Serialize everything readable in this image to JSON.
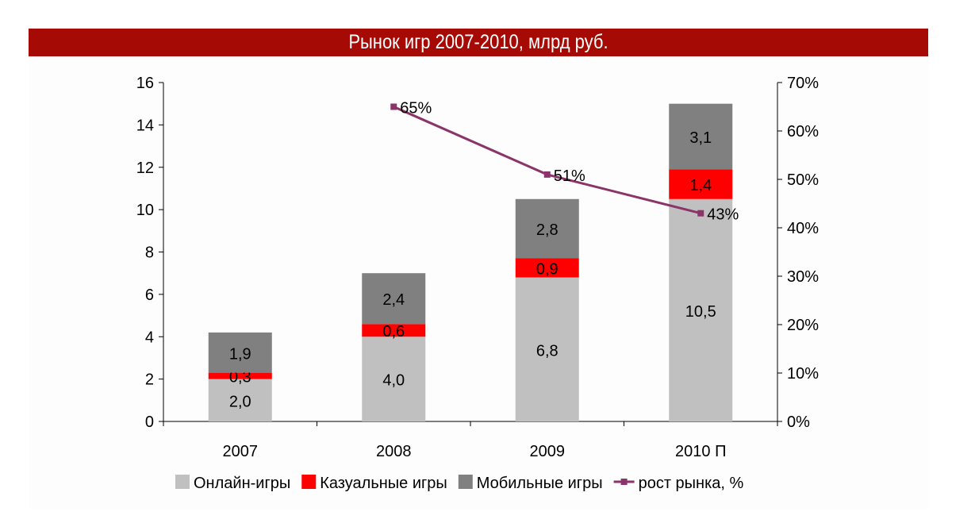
{
  "chart_data": {
    "type": "bar",
    "stacked": true,
    "title": "Рынок игр 2007-2010, млрд руб.",
    "categories": [
      "2007",
      "2008",
      "2009",
      "2010 П"
    ],
    "series": [
      {
        "name": "Онлайн-игры",
        "values": [
          2.0,
          4.0,
          6.8,
          10.5
        ],
        "labels": [
          "2,0",
          "4,0",
          "6,8",
          "10,5"
        ],
        "color": "#c0c0c0"
      },
      {
        "name": "Казуальные игры",
        "values": [
          0.3,
          0.6,
          0.9,
          1.4
        ],
        "labels": [
          "0,3",
          "0,6",
          "0,9",
          "1,4"
        ],
        "color": "#ff0000"
      },
      {
        "name": "Мобильные игры",
        "values": [
          1.9,
          2.4,
          2.8,
          3.1
        ],
        "labels": [
          "1,9",
          "2,4",
          "2,8",
          "3,1"
        ],
        "color": "#808080"
      }
    ],
    "line_series": {
      "name": "рост рынка, %",
      "axis": "right",
      "values": [
        null,
        65,
        51,
        43
      ],
      "labels": [
        "",
        "65%",
        "51%",
        "43%"
      ],
      "color": "#8b3469"
    },
    "y_left": {
      "range": [
        0,
        16
      ],
      "ticks": [
        "0",
        "2",
        "4",
        "6",
        "8",
        "10",
        "12",
        "14",
        "16"
      ]
    },
    "y_right": {
      "range": [
        0,
        70
      ],
      "ticks": [
        "0%",
        "10%",
        "20%",
        "30%",
        "40%",
        "50%",
        "60%",
        "70%"
      ]
    },
    "grid": false,
    "legend_position": "bottom"
  }
}
